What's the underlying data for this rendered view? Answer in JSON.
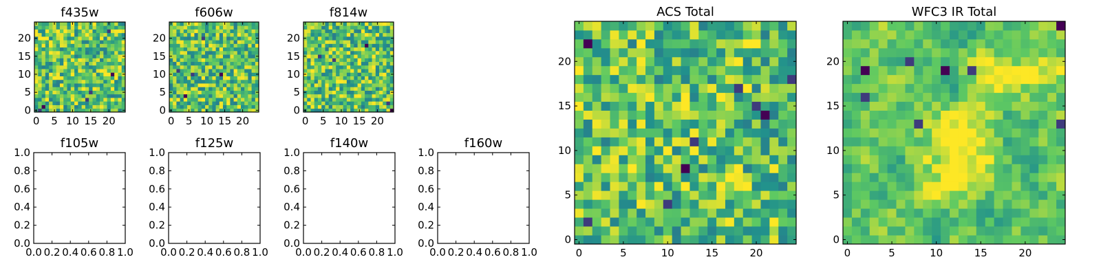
{
  "figure": {
    "background": "#ffffff",
    "colormap": "viridis",
    "colormap_stops": [
      "#440154",
      "#3b528b",
      "#21918c",
      "#5ec962",
      "#fde725"
    ]
  },
  "chart_data": [
    {
      "type": "heatmap",
      "title": "f435w",
      "xticks": [
        0,
        5,
        10,
        15,
        20
      ],
      "yticks": [
        0,
        5,
        10,
        15,
        20
      ],
      "xlim": [
        -0.5,
        24.5
      ],
      "ylim": [
        -0.5,
        24.5
      ],
      "grid_size": 25,
      "seed": 11,
      "smooth": false,
      "dark_cells": [
        [
          2,
          1
        ],
        [
          1,
          0
        ],
        [
          14,
          3
        ],
        [
          21,
          10
        ],
        [
          15,
          5
        ],
        [
          20,
          22
        ]
      ]
    },
    {
      "type": "heatmap",
      "title": "f606w",
      "xticks": [
        0,
        5,
        10,
        15,
        20
      ],
      "yticks": [
        0,
        5,
        10,
        15,
        20
      ],
      "xlim": [
        -0.5,
        24.5
      ],
      "ylim": [
        -0.5,
        24.5
      ],
      "grid_size": 25,
      "seed": 23,
      "smooth": false,
      "dark_cells": [
        [
          4,
          4
        ],
        [
          2,
          11
        ],
        [
          6,
          10
        ],
        [
          14,
          10
        ],
        [
          9,
          20
        ]
      ]
    },
    {
      "type": "heatmap",
      "title": "f814w",
      "xticks": [
        0,
        5,
        10,
        15,
        20
      ],
      "yticks": [
        0,
        5,
        10,
        15,
        20
      ],
      "xlim": [
        -0.5,
        24.5
      ],
      "ylim": [
        -0.5,
        24.5
      ],
      "grid_size": 25,
      "seed": 37,
      "smooth": false,
      "dark_cells": [
        [
          24,
          0
        ],
        [
          23,
          2
        ],
        [
          8,
          14
        ],
        [
          17,
          18
        ],
        [
          4,
          15
        ]
      ]
    },
    {
      "type": "scatter",
      "title": "f105w",
      "xticks": [
        "0.0",
        "0.2",
        "0.4",
        "0.6",
        "0.8",
        "1.0"
      ],
      "yticks": [
        "0.0",
        "0.2",
        "0.4",
        "0.6",
        "0.8",
        "1.0"
      ],
      "xlim": [
        0,
        1
      ],
      "ylim": [
        0,
        1
      ],
      "values": []
    },
    {
      "type": "scatter",
      "title": "f125w",
      "xticks": [
        "0.0",
        "0.2",
        "0.4",
        "0.6",
        "0.8",
        "1.0"
      ],
      "yticks": [
        "0.0",
        "0.2",
        "0.4",
        "0.6",
        "0.8",
        "1.0"
      ],
      "xlim": [
        0,
        1
      ],
      "ylim": [
        0,
        1
      ],
      "values": []
    },
    {
      "type": "scatter",
      "title": "f140w",
      "xticks": [
        "0.0",
        "0.2",
        "0.4",
        "0.6",
        "0.8",
        "1.0"
      ],
      "yticks": [
        "0.0",
        "0.2",
        "0.4",
        "0.6",
        "0.8",
        "1.0"
      ],
      "xlim": [
        0,
        1
      ],
      "ylim": [
        0,
        1
      ],
      "values": []
    },
    {
      "type": "scatter",
      "title": "f160w",
      "xticks": [
        "0.0",
        "0.2",
        "0.4",
        "0.6",
        "0.8",
        "1.0"
      ],
      "yticks": [
        "0.0",
        "0.2",
        "0.4",
        "0.6",
        "0.8",
        "1.0"
      ],
      "xlim": [
        0,
        1
      ],
      "ylim": [
        0,
        1
      ],
      "values": []
    },
    {
      "type": "heatmap",
      "title": "ACS Total",
      "xticks": [
        0,
        5,
        10,
        15,
        20
      ],
      "yticks": [
        0,
        5,
        10,
        15,
        20
      ],
      "xlim": [
        -0.5,
        24.5
      ],
      "ylim": [
        -0.5,
        24.5
      ],
      "grid_size": 25,
      "seed": 53,
      "smooth": false,
      "dark_cells": [
        [
          1,
          22
        ],
        [
          1,
          2
        ],
        [
          10,
          4
        ],
        [
          12,
          8
        ],
        [
          18,
          17
        ],
        [
          20,
          15
        ],
        [
          21,
          14
        ],
        [
          24,
          18
        ],
        [
          13,
          11
        ]
      ]
    },
    {
      "type": "heatmap",
      "title": "WFC3 IR Total",
      "xticks": [
        0,
        5,
        10,
        15,
        20
      ],
      "yticks": [
        0,
        5,
        10,
        15,
        20
      ],
      "xlim": [
        -0.5,
        24.5
      ],
      "ylim": [
        -0.5,
        24.5
      ],
      "grid_size": 25,
      "seed": 71,
      "smooth": true,
      "dark_cells": [
        [
          24,
          24
        ],
        [
          2,
          16
        ],
        [
          8,
          13
        ],
        [
          11,
          19
        ],
        [
          14,
          19
        ],
        [
          7,
          20
        ],
        [
          2,
          19
        ],
        [
          24,
          13
        ]
      ],
      "bright_regions": [
        [
          22,
          19,
          2.5
        ],
        [
          12,
          9,
          3.5
        ],
        [
          14,
          12,
          2.5
        ],
        [
          16,
          18,
          2
        ]
      ]
    }
  ]
}
